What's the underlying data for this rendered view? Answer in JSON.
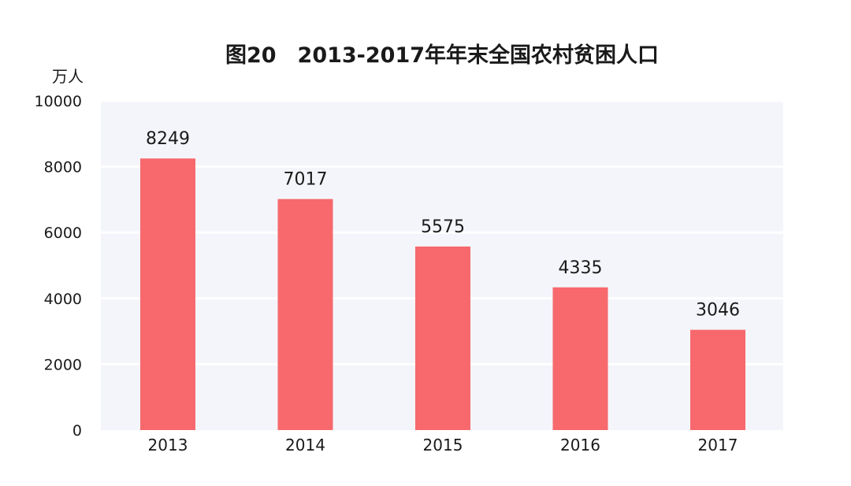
{
  "chart_data": {
    "type": "bar",
    "title": "图20　2013-2017年年末全国农村贫困人口",
    "ylabel": "万人",
    "xlabel": "",
    "categories": [
      "2013",
      "2014",
      "2015",
      "2016",
      "2017"
    ],
    "values": [
      8249,
      7017,
      5575,
      4335,
      3046
    ],
    "value_labels": [
      "8249",
      "7017",
      "5575",
      "4335",
      "3046"
    ],
    "ylim": [
      0,
      10000
    ],
    "yticks": [
      0,
      2000,
      4000,
      6000,
      8000,
      10000
    ],
    "ytick_labels": [
      "0",
      "2000",
      "4000",
      "6000",
      "8000",
      "10000"
    ],
    "grid": true,
    "bar_color": "#f7696d",
    "plot_background": "#f3f5fa",
    "grid_color": "#ffffff"
  }
}
